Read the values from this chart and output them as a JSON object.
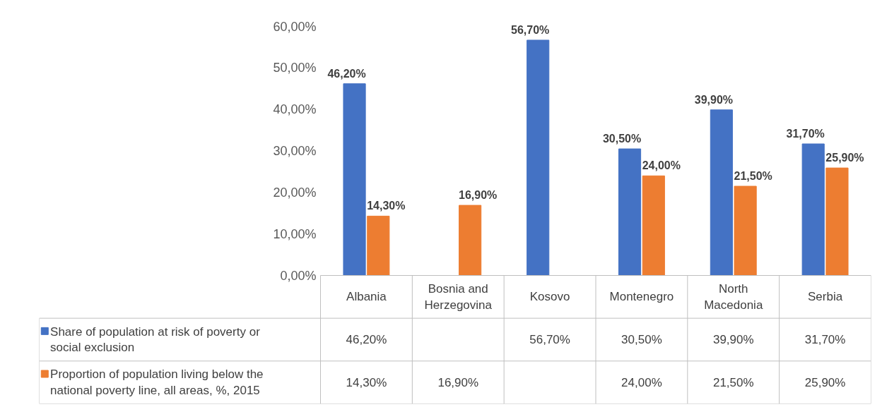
{
  "chart_data": {
    "type": "bar",
    "categories": [
      "Albania",
      "Bosnia and Herzegovina",
      "Kosovo",
      "Montenegro",
      "North Macedonia",
      "Serbia"
    ],
    "series": [
      {
        "name": "Share of population at risk of poverty or social exclusion",
        "color": "#4472c4",
        "values": [
          46.2,
          null,
          56.7,
          30.5,
          39.9,
          31.7
        ],
        "value_labels": [
          "46,20%",
          null,
          "56,70%",
          "30,50%",
          "39,90%",
          "31,70%"
        ]
      },
      {
        "name": "Proportion of population living below the national poverty line, all areas, %, 2015",
        "color": "#ed7d31",
        "values": [
          14.3,
          16.9,
          null,
          24.0,
          21.5,
          25.9
        ],
        "value_labels": [
          "14,30%",
          "16,90%",
          null,
          "24,00%",
          "21,50%",
          "25,90%"
        ]
      }
    ],
    "ylim": [
      0,
      60
    ],
    "yticks": [
      {
        "value": 0,
        "label": "0,00%"
      },
      {
        "value": 10,
        "label": "10,00%"
      },
      {
        "value": 20,
        "label": "20,00%"
      },
      {
        "value": 30,
        "label": "30,00%"
      },
      {
        "value": 40,
        "label": "40,00%"
      },
      {
        "value": 50,
        "label": "50,00%"
      },
      {
        "value": 60,
        "label": "60,00%"
      }
    ],
    "legend": "bottom"
  }
}
